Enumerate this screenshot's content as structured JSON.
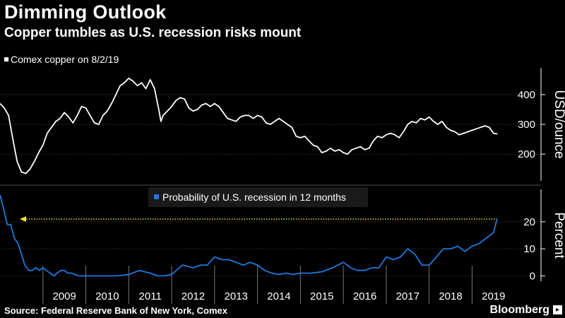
{
  "header": {
    "title": "Dimming Outlook",
    "subtitle": "Copper tumbles as U.S. recession risks mount"
  },
  "footer": {
    "source": "Source: Federal Reserve Bank of New York, Comex",
    "brand": "Bloomberg"
  },
  "colors": {
    "background": "#000000",
    "copper_line": "#ffffff",
    "recession_line": "#1f78e0",
    "dotted_arrow": "#e8e23a"
  },
  "chart_data": [
    {
      "type": "line",
      "legend": "Comex copper on 8/2/19",
      "ylabel": "USD/ounce",
      "y_ticks": [
        200,
        300,
        400
      ],
      "ylim": [
        110,
        490
      ],
      "xlim": [
        2008.0,
        2019.75
      ],
      "grid": true,
      "series": [
        {
          "name": "Comex copper on 8/2/19",
          "x": [
            2008.0,
            2008.1,
            2008.2,
            2008.3,
            2008.4,
            2008.5,
            2008.6,
            2008.7,
            2008.8,
            2008.9,
            2009.0,
            2009.1,
            2009.2,
            2009.3,
            2009.4,
            2009.5,
            2009.6,
            2009.7,
            2009.8,
            2009.9,
            2010.0,
            2010.1,
            2010.2,
            2010.3,
            2010.4,
            2010.5,
            2010.6,
            2010.7,
            2010.8,
            2010.9,
            2011.0,
            2011.1,
            2011.2,
            2011.3,
            2011.4,
            2011.5,
            2011.6,
            2011.7,
            2011.75,
            2011.8,
            2011.9,
            2012.0,
            2012.1,
            2012.2,
            2012.3,
            2012.4,
            2012.5,
            2012.6,
            2012.7,
            2012.8,
            2012.9,
            2013.0,
            2013.1,
            2013.2,
            2013.3,
            2013.4,
            2013.5,
            2013.6,
            2013.7,
            2013.8,
            2013.9,
            2014.0,
            2014.1,
            2014.2,
            2014.3,
            2014.4,
            2014.5,
            2014.6,
            2014.7,
            2014.8,
            2014.9,
            2015.0,
            2015.1,
            2015.2,
            2015.3,
            2015.4,
            2015.5,
            2015.6,
            2015.7,
            2015.8,
            2015.9,
            2016.0,
            2016.1,
            2016.2,
            2016.3,
            2016.4,
            2016.5,
            2016.6,
            2016.7,
            2016.8,
            2016.9,
            2017.0,
            2017.1,
            2017.2,
            2017.3,
            2017.4,
            2017.5,
            2017.6,
            2017.7,
            2017.8,
            2017.9,
            2018.0,
            2018.1,
            2018.2,
            2018.3,
            2018.4,
            2018.5,
            2018.6,
            2018.7,
            2018.8,
            2018.9,
            2019.0,
            2019.1,
            2019.2,
            2019.3,
            2019.4,
            2019.5,
            2019.59
          ],
          "y": [
            370,
            355,
            330,
            250,
            175,
            140,
            135,
            150,
            175,
            205,
            230,
            270,
            290,
            310,
            320,
            340,
            325,
            305,
            330,
            360,
            355,
            330,
            305,
            300,
            330,
            345,
            370,
            400,
            430,
            440,
            455,
            445,
            430,
            440,
            420,
            450,
            420,
            350,
            310,
            330,
            345,
            360,
            380,
            390,
            385,
            355,
            345,
            350,
            365,
            370,
            360,
            370,
            360,
            340,
            320,
            315,
            310,
            325,
            330,
            330,
            320,
            330,
            325,
            305,
            300,
            310,
            320,
            310,
            300,
            290,
            260,
            255,
            260,
            245,
            230,
            225,
            205,
            210,
            220,
            210,
            215,
            205,
            200,
            215,
            220,
            225,
            215,
            220,
            245,
            260,
            255,
            265,
            270,
            265,
            255,
            275,
            300,
            310,
            305,
            320,
            315,
            325,
            310,
            300,
            310,
            290,
            280,
            275,
            265,
            270,
            275,
            280,
            285,
            290,
            295,
            290,
            270,
            268
          ]
        }
      ]
    },
    {
      "type": "line",
      "legend": "Probability of U.S. recession in 12 months",
      "ylabel": "Percent",
      "y_ticks": [
        0,
        10,
        20
      ],
      "ylim": [
        -2,
        32
      ],
      "xlim": [
        2008.0,
        2019.75
      ],
      "x_ticks": [
        "2009",
        "2010",
        "2011",
        "2012",
        "2013",
        "2014",
        "2015",
        "2016",
        "2017",
        "2018",
        "2019"
      ],
      "grid": true,
      "annotation": "dotted arrow at current recession probability",
      "series": [
        {
          "name": "Probability of U.S. recession in 12 months",
          "x": [
            2008.0,
            2008.08,
            2008.17,
            2008.25,
            2008.33,
            2008.42,
            2008.5,
            2008.58,
            2008.67,
            2008.75,
            2008.83,
            2008.92,
            2009.0,
            2009.08,
            2009.17,
            2009.25,
            2009.33,
            2009.42,
            2009.5,
            2009.58,
            2009.67,
            2009.75,
            2009.83,
            2009.92,
            2010.0,
            2010.25,
            2010.5,
            2010.75,
            2011.0,
            2011.25,
            2011.5,
            2011.67,
            2011.83,
            2012.0,
            2012.25,
            2012.5,
            2012.67,
            2012.83,
            2013.0,
            2013.17,
            2013.33,
            2013.5,
            2013.67,
            2013.83,
            2014.0,
            2014.17,
            2014.33,
            2014.5,
            2014.67,
            2014.83,
            2015.0,
            2015.25,
            2015.5,
            2015.75,
            2016.0,
            2016.17,
            2016.33,
            2016.5,
            2016.67,
            2016.83,
            2017.0,
            2017.17,
            2017.33,
            2017.5,
            2017.67,
            2017.83,
            2018.0,
            2018.17,
            2018.33,
            2018.5,
            2018.67,
            2018.83,
            2019.0,
            2019.17,
            2019.33,
            2019.42,
            2019.5,
            2019.58
          ],
          "y": [
            30,
            25,
            19,
            19,
            14,
            12,
            8,
            4,
            2,
            2,
            3,
            2,
            3,
            2,
            1,
            0,
            1,
            2,
            2,
            1,
            1,
            0.5,
            0,
            0,
            0,
            0,
            0,
            0,
            0.5,
            2,
            1,
            0,
            0,
            0.5,
            4,
            3,
            4,
            4,
            7,
            6,
            6,
            5,
            4,
            5,
            4,
            2,
            1,
            0.5,
            1,
            0.5,
            1,
            1,
            1.5,
            3,
            5,
            3,
            2,
            2,
            3,
            3,
            7,
            6,
            7,
            10,
            8,
            4,
            4,
            7,
            10,
            10,
            11,
            9,
            11,
            12,
            14,
            15,
            16,
            21
          ]
        }
      ]
    }
  ]
}
